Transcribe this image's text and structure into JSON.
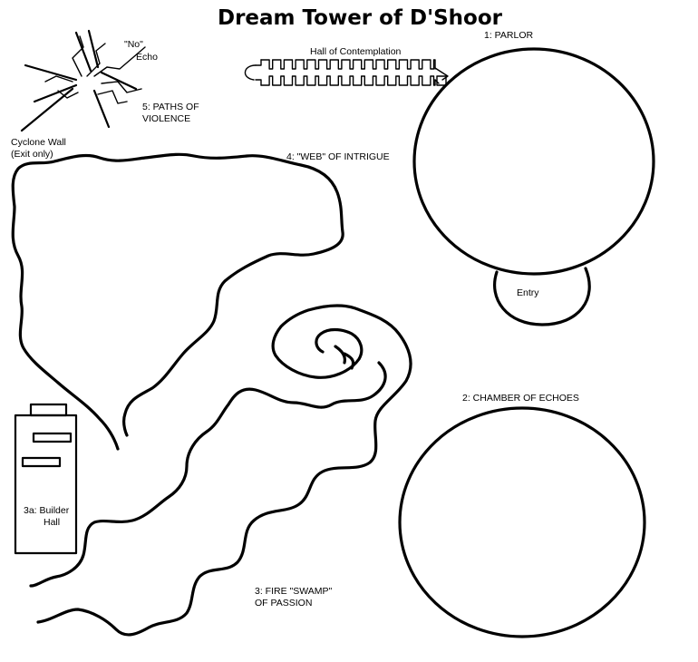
{
  "map": {
    "title": "Dream Tower of D'Shoor",
    "labels": {
      "parlor": "1: PARLOR",
      "entry": "Entry",
      "hall_of_contemplation": "Hall of Contemplation",
      "chamber_of_echoes": "2: CHAMBER OF ECHOES",
      "fire_swamp_line1": "3: FIRE \"SWAMP\"",
      "fire_swamp_line2": "OF PASSION",
      "builder_hall_line1": "3a: Builder",
      "builder_hall_line2": "Hall",
      "web_of_intrigue": "4: \"WEB\" OF INTRIGUE",
      "paths_line1": "5: PATHS OF",
      "paths_line2": "VIOLENCE",
      "no_echo_line1": "\"No\"",
      "no_echo_line2": "Echo",
      "cyclone_line1": "Cyclone Wall",
      "cyclone_line2": "(Exit only)"
    }
  }
}
